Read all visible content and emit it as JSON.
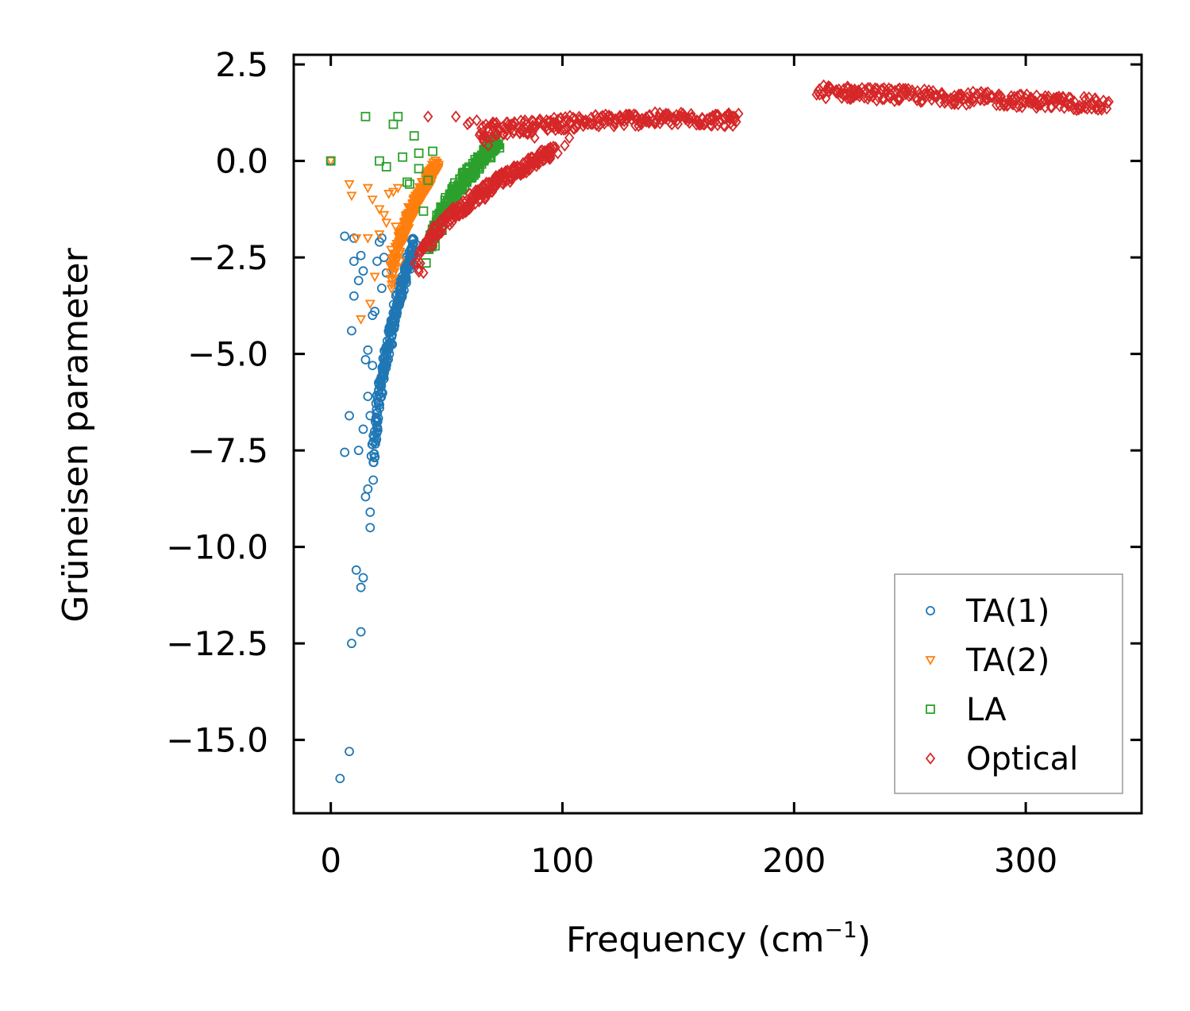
{
  "chart_data": {
    "type": "scatter",
    "xlabel": "Frequency (cm",
    "xlabel_exponent": "−1",
    "xlabel_suffix": ")",
    "ylabel": "Grüneisen parameter",
    "xlim": [
      -16,
      350
    ],
    "ylim": [
      -16.9,
      2.75
    ],
    "xticks": [
      0,
      100,
      200,
      300
    ],
    "xtick_labels": [
      "0",
      "100",
      "200",
      "300"
    ],
    "yticks": [
      2.5,
      0,
      -2.5,
      -5,
      -7.5,
      -10,
      -12.5,
      -15
    ],
    "ytick_labels": [
      "2.5",
      "0.0",
      "−2.5",
      "−5.0",
      "−7.5",
      "−10.0",
      "−12.5",
      "−15.0"
    ],
    "tick_direction": "in",
    "legend_position": "lower-right",
    "series": [
      {
        "name": "TA(1)",
        "marker": "circle",
        "color": "#1f77b4",
        "points": [
          [
            0,
            0
          ],
          [
            4,
            -16.0
          ],
          [
            8,
            -15.3
          ],
          [
            9,
            -12.5
          ],
          [
            13,
            -12.2
          ],
          [
            11,
            -10.6
          ],
          [
            14,
            -10.8
          ],
          [
            13,
            -11.05
          ],
          [
            6,
            -7.55
          ],
          [
            12,
            -7.5
          ],
          [
            8,
            -6.6
          ],
          [
            14,
            -6.95
          ],
          [
            15,
            -8.7
          ],
          [
            16,
            -8.5
          ],
          [
            17,
            -9.1
          ],
          [
            17,
            -9.5
          ],
          [
            9,
            -4.4
          ],
          [
            10,
            -3.5
          ],
          [
            12,
            -3.1
          ],
          [
            10,
            -2.6
          ],
          [
            6,
            -1.95
          ],
          [
            10,
            -2.0
          ],
          [
            13,
            -2.45
          ],
          [
            14,
            -2.85
          ],
          [
            15,
            -5.15
          ],
          [
            16,
            -4.9
          ],
          [
            16,
            -6.1
          ],
          [
            17,
            -6.6
          ],
          [
            18,
            -5.3
          ],
          [
            18,
            -4.0
          ],
          [
            19,
            -3.9
          ],
          [
            20,
            -2.6
          ],
          [
            21,
            -2.1
          ],
          [
            22,
            -2.0
          ],
          [
            22,
            -3.3
          ],
          [
            23,
            -2.5
          ],
          [
            24,
            -2.9
          ]
        ],
        "band": {
          "x_start": 18,
          "x_end": 36,
          "y_start": -8.2,
          "y_end": -2.1
        }
      },
      {
        "name": "TA(2)",
        "marker": "triangle-down",
        "color": "#ff7f0e",
        "points": [
          [
            0,
            0
          ],
          [
            8,
            -0.6
          ],
          [
            9,
            -0.9
          ],
          [
            11,
            -2.0
          ],
          [
            16,
            -0.7
          ],
          [
            16,
            -2.0
          ],
          [
            18,
            -1.0
          ],
          [
            21,
            -1.25
          ],
          [
            23,
            -1.4
          ],
          [
            25,
            -0.85
          ],
          [
            27,
            -0.8
          ],
          [
            29,
            -0.7
          ],
          [
            13,
            -4.1
          ],
          [
            17,
            -3.7
          ],
          [
            19,
            -3.0
          ],
          [
            21,
            -1.9
          ],
          [
            24,
            -1.6
          ],
          [
            26,
            -2.3
          ],
          [
            28,
            -1.7
          ],
          [
            30,
            -2.6
          ]
        ],
        "band": {
          "x_start": 26,
          "x_end": 46,
          "y_start": -3.2,
          "y_end": -0.1
        }
      },
      {
        "name": "LA",
        "marker": "square",
        "color": "#2ca02c",
        "points": [
          [
            0,
            0
          ],
          [
            15,
            1.15
          ],
          [
            27,
            0.95
          ],
          [
            29,
            1.15
          ],
          [
            21,
            0.0
          ],
          [
            24,
            -0.15
          ],
          [
            31,
            0.1
          ],
          [
            36,
            0.65
          ],
          [
            38,
            0.2
          ],
          [
            33,
            -0.55
          ],
          [
            34,
            -0.6
          ],
          [
            38,
            -0.2
          ],
          [
            40,
            -1.3
          ],
          [
            42,
            -0.5
          ],
          [
            44,
            0.25
          ],
          [
            45,
            -2.2
          ],
          [
            46,
            -1.6
          ],
          [
            48,
            -1.8
          ],
          [
            50,
            -1.2
          ]
        ],
        "band": {
          "x_start": 42,
          "x_end": 72,
          "y_start": -2.5,
          "y_end": 0.5
        }
      },
      {
        "name": "Optical",
        "marker": "diamond",
        "color": "#d62728",
        "points": [
          [
            42,
            1.15
          ],
          [
            54,
            1.15
          ],
          [
            60,
            1.0
          ],
          [
            63,
            1.05
          ],
          [
            59,
            0.95
          ],
          [
            65,
            0.85
          ],
          [
            66,
            0.5
          ],
          [
            68,
            0.4
          ],
          [
            70,
            1.0
          ],
          [
            72,
            0.7
          ],
          [
            75,
            0.85
          ],
          [
            78,
            0.85
          ],
          [
            82,
            0.8
          ],
          [
            85,
            0.7
          ],
          [
            88,
            0.6
          ],
          [
            92,
            0.95
          ],
          [
            95,
            0.9
          ],
          [
            97,
            0.35
          ],
          [
            98,
            0.2
          ],
          [
            101,
            0.4
          ],
          [
            103,
            0.6
          ],
          [
            36,
            -2.65
          ],
          [
            38,
            -2.8
          ],
          [
            40,
            -2.9
          ],
          [
            44,
            -2.2
          ]
        ],
        "bands": [
          {
            "x_start": 64,
            "x_end": 176,
            "y_start": 0.75,
            "y_end": 1.05,
            "y_mid": 1.2
          },
          {
            "x_start": 38,
            "x_end": 96,
            "y_start": -2.7,
            "y_end": 0.25
          },
          {
            "x_start": 210,
            "x_end": 335,
            "y_start": 1.8,
            "y_end": 1.45,
            "y_mid": 1.65
          }
        ]
      }
    ]
  }
}
